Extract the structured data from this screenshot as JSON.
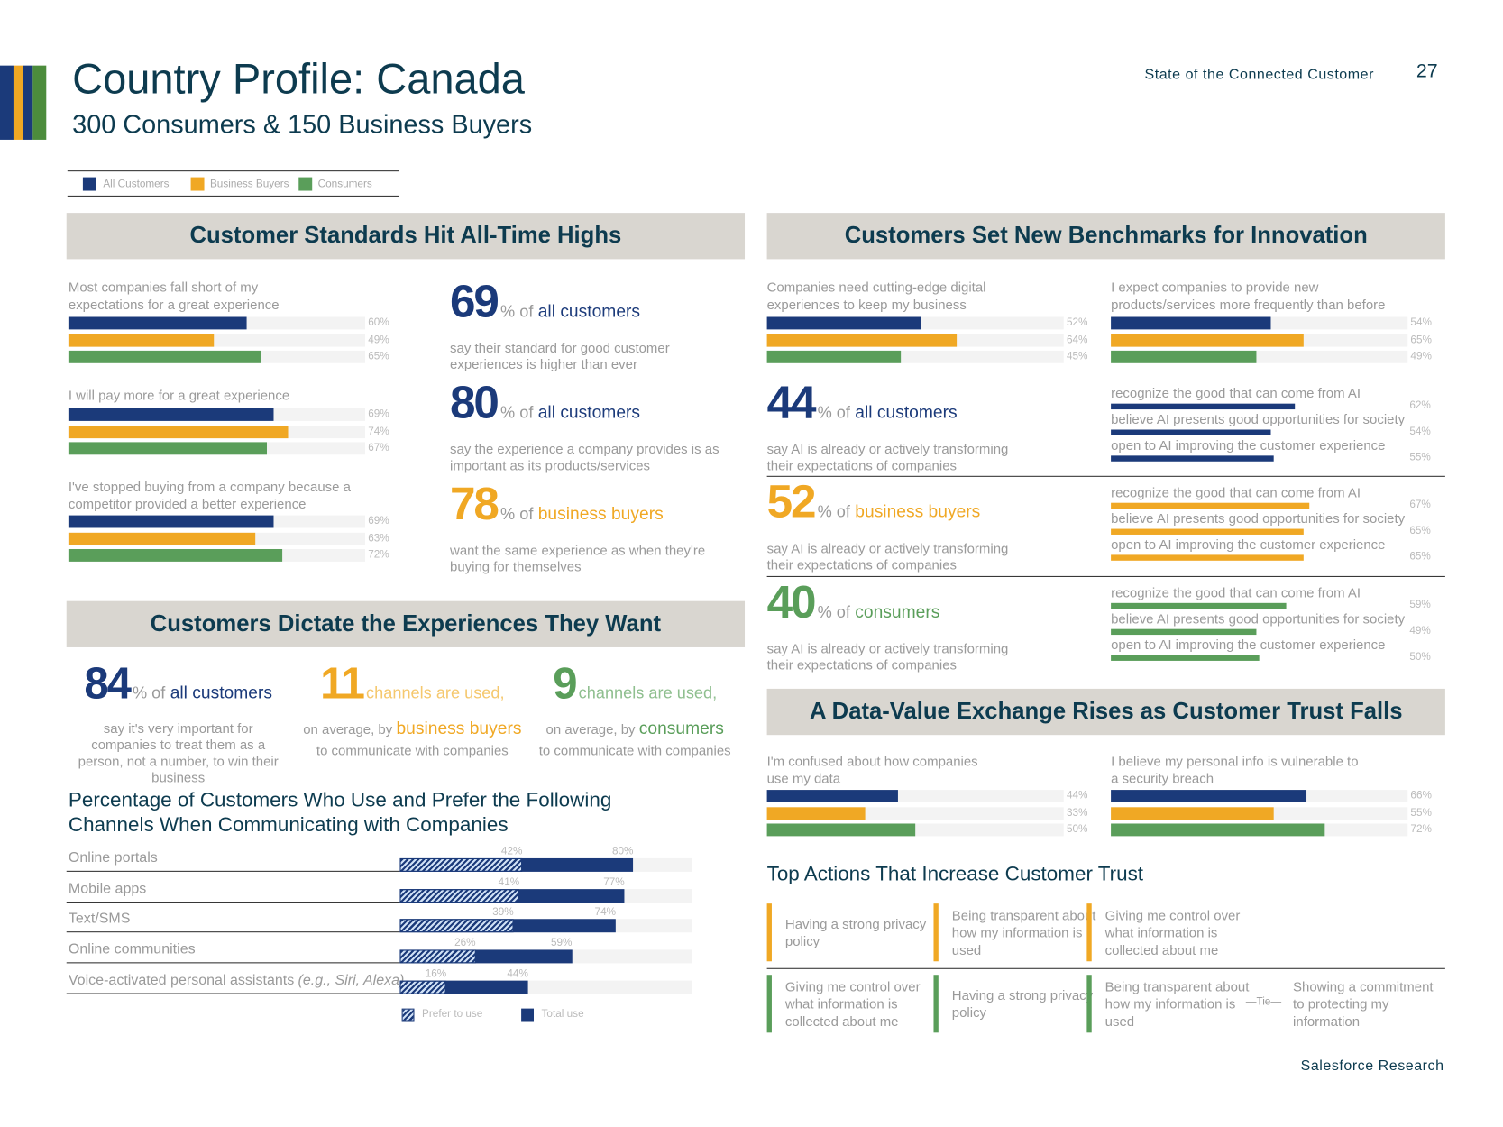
{
  "header": {
    "title": "Country Profile: Canada",
    "subtitle": "300 Consumers & 150 Business Buyers",
    "report": "State of the Connected Customer",
    "page": 27
  },
  "legend": [
    {
      "name": "All Customers",
      "color": "#1b3a7a"
    },
    {
      "name": "Business Buyers",
      "color": "#f0a824"
    },
    {
      "name": "Consumers",
      "color": "#5a9e5a"
    }
  ],
  "sections": [
    {
      "title": "Customer Standards Hit All-Time Highs",
      "bar_groups": [
        {
          "label": "Most companies fall short of my expectations for a great experience",
          "values": [
            60,
            49,
            65
          ],
          "value_labels": [
            "60%",
            "49%",
            "65%"
          ]
        },
        {
          "label": "I will pay more for a great experience",
          "values": [
            69,
            74,
            67
          ],
          "value_labels": [
            "69%",
            "74%",
            "67%"
          ]
        },
        {
          "label": "I've stopped buying from a company because a competitor provided a better experience",
          "values": [
            69,
            63,
            72
          ],
          "value_labels": [
            "69%",
            "63%",
            "72%"
          ]
        }
      ],
      "stats": [
        {
          "number": 69,
          "unit": "% of",
          "audience": "all customers",
          "color": "#1b3a7a",
          "text": "say their standard for good customer experiences is higher than ever"
        },
        {
          "number": 80,
          "unit": "% of",
          "audience": "all customers",
          "color": "#1b3a7a",
          "text": "say the experience a company provides is as important as its products/services"
        },
        {
          "number": 78,
          "unit": "% of",
          "audience": "business buyers",
          "color": "#f0a824",
          "text": "want the same experience as when they're buying for themselves"
        }
      ]
    },
    {
      "title": "Customers Dictate the Experiences They Want",
      "stats": [
        {
          "number": 84,
          "unit": "% of",
          "audience": "all customers",
          "color": "#1b3a7a",
          "text": "say it's very important for companies to treat them as a person, not a number, to win their business"
        },
        {
          "number": 11,
          "unit": "channels are used,",
          "lead": "on average, by",
          "audience": "business buyers",
          "color": "#f0a824",
          "text": "to communicate with companies"
        },
        {
          "number": 9,
          "unit": "channels are used,",
          "lead": "on average, by",
          "audience": "consumers",
          "color": "#5a9e5a",
          "text": "to communicate with companies"
        }
      ],
      "channels": {
        "title": "Percentage of Customers Who Use and Prefer the Following Channels When Communicating with Companies",
        "rows": [
          {
            "label": "Online portals",
            "prefer": 42,
            "prefer_label": "42%",
            "total": 80,
            "total_label": "80%"
          },
          {
            "label": "Mobile apps",
            "prefer": 41,
            "prefer_label": "41%",
            "total": 77,
            "total_label": "77%"
          },
          {
            "label": "Text/SMS",
            "prefer": 39,
            "prefer_label": "39%",
            "total": 74,
            "total_label": "74%"
          },
          {
            "label": "Online communities",
            "prefer": 26,
            "prefer_label": "26%",
            "total": 59,
            "total_label": "59%"
          },
          {
            "label": "Voice-activated personal assistants",
            "note": "(e.g., Siri, Alexa)",
            "prefer": 16,
            "prefer_label": "16%",
            "total": 44,
            "total_label": "44%"
          }
        ],
        "legend": [
          "Prefer to use",
          "Total use"
        ]
      }
    },
    {
      "title": "Customers Set New Benchmarks for Innovation",
      "bar_groups": [
        {
          "label": "Companies need cutting-edge digital experiences to keep my business",
          "values": [
            52,
            64,
            45
          ],
          "value_labels": [
            "52%",
            "64%",
            "45%"
          ]
        },
        {
          "label": "I expect companies to provide new products/services more frequently than before",
          "values": [
            54,
            65,
            49
          ],
          "value_labels": [
            "54%",
            "65%",
            "49%"
          ]
        }
      ],
      "ai_stats": [
        {
          "number": 44,
          "unit": "% of",
          "audience": "all customers",
          "color": "#1b3a7a",
          "text": "say AI is already or actively transforming their expectations of companies",
          "items": [
            {
              "label": "recognize the good that can come from AI",
              "value": 62,
              "value_label": "62%"
            },
            {
              "label": "believe AI presents good opportunities for society",
              "value": 54,
              "value_label": "54%"
            },
            {
              "label": "open to AI improving the customer experience",
              "value": 55,
              "value_label": "55%"
            }
          ]
        },
        {
          "number": 52,
          "unit": "% of",
          "audience": "business buyers",
          "color": "#f0a824",
          "text": "say AI is already or actively transforming their expectations of companies",
          "items": [
            {
              "label": "recognize the good that can come from AI",
              "value": 67,
              "value_label": "67%"
            },
            {
              "label": "believe AI presents good opportunities for society",
              "value": 65,
              "value_label": "65%"
            },
            {
              "label": "open to AI improving the customer experience",
              "value": 65,
              "value_label": "65%"
            }
          ]
        },
        {
          "number": 40,
          "unit": "% of",
          "audience": "consumers",
          "color": "#5a9e5a",
          "text": "say AI is already or actively transforming their expectations of companies",
          "items": [
            {
              "label": "recognize the good that can come from AI",
              "value": 59,
              "value_label": "59%"
            },
            {
              "label": "believe AI presents good opportunities for society",
              "value": 49,
              "value_label": "49%"
            },
            {
              "label": "open to AI improving the customer experience",
              "value": 50,
              "value_label": "50%"
            }
          ]
        }
      ]
    },
    {
      "title": "A Data-Value Exchange Rises as Customer Trust Falls",
      "bar_groups": [
        {
          "label": "I'm confused about how companies use my data",
          "values": [
            44,
            33,
            50
          ],
          "value_labels": [
            "44%",
            "33%",
            "50%"
          ]
        },
        {
          "label": "I believe my personal info is vulnerable to a security breach",
          "values": [
            66,
            55,
            72
          ],
          "value_labels": [
            "66%",
            "55%",
            "72%"
          ]
        }
      ],
      "trust": {
        "title": "Top Actions That Increase Customer Trust",
        "rows": [
          {
            "color": "#f0a824",
            "actions": [
              "Having a strong privacy policy",
              "Being transparent about how my information is used",
              "Giving me control over what information is collected about me"
            ]
          },
          {
            "color": "#5a9e5a",
            "actions": [
              "Giving me control over what information is collected about me",
              "Having a strong privacy policy",
              "Being transparent about how my information is used",
              "Showing a commitment to protecting my information"
            ],
            "tie": "—Tie—"
          }
        ]
      }
    }
  ],
  "footer": "Salesforce Research"
}
